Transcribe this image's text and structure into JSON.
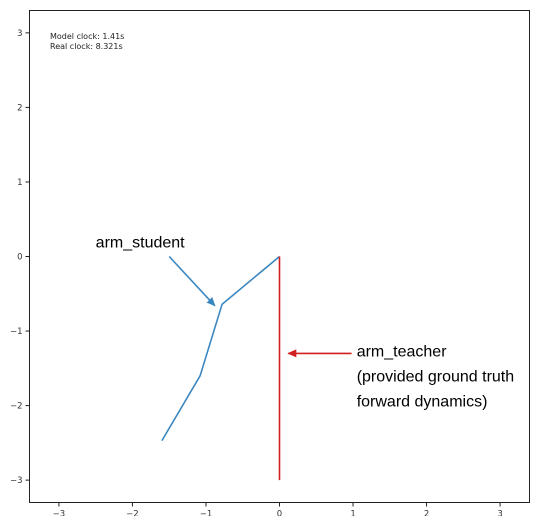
{
  "chart_data": {
    "type": "line",
    "title": "",
    "xlabel": "",
    "ylabel": "",
    "xlim": [
      -3.4,
      3.4
    ],
    "ylim": [
      -3.3,
      3.3
    ],
    "xticks": [
      -3,
      -2,
      -1,
      0,
      1,
      2,
      3
    ],
    "yticks": [
      -3,
      -2,
      -1,
      0,
      1,
      2,
      3
    ],
    "grid": false,
    "clocks": {
      "model": "Model clock: 1.41s",
      "real": "Real clock: 8.321s"
    },
    "series": [
      {
        "color": "#3a87c0",
        "x": [
          0,
          -0.78,
          -1.08,
          -1.6
        ],
        "y": [
          0,
          -0.64,
          -1.6,
          -2.47
        ]
      },
      {
        "color": "#d21f1f",
        "x": [
          0,
          0
        ],
        "y": [
          0,
          -3.0
        ]
      }
    ],
    "annotations": [
      {
        "lines": [
          "arm_student"
        ],
        "color": "#3a87c0",
        "text_at": [
          -2.5,
          0.12
        ],
        "arrow_from": [
          -1.5,
          0.0
        ],
        "arrow_to": [
          -0.88,
          -0.66
        ]
      },
      {
        "lines": [
          "arm_teacher",
          "(provided ground truth",
          "forward dynamics)"
        ],
        "color": "#d21f1f",
        "text_at": [
          1.05,
          -1.34
        ],
        "arrow_from": [
          0.98,
          -1.3
        ],
        "arrow_to": [
          0.12,
          -1.3
        ]
      }
    ]
  }
}
